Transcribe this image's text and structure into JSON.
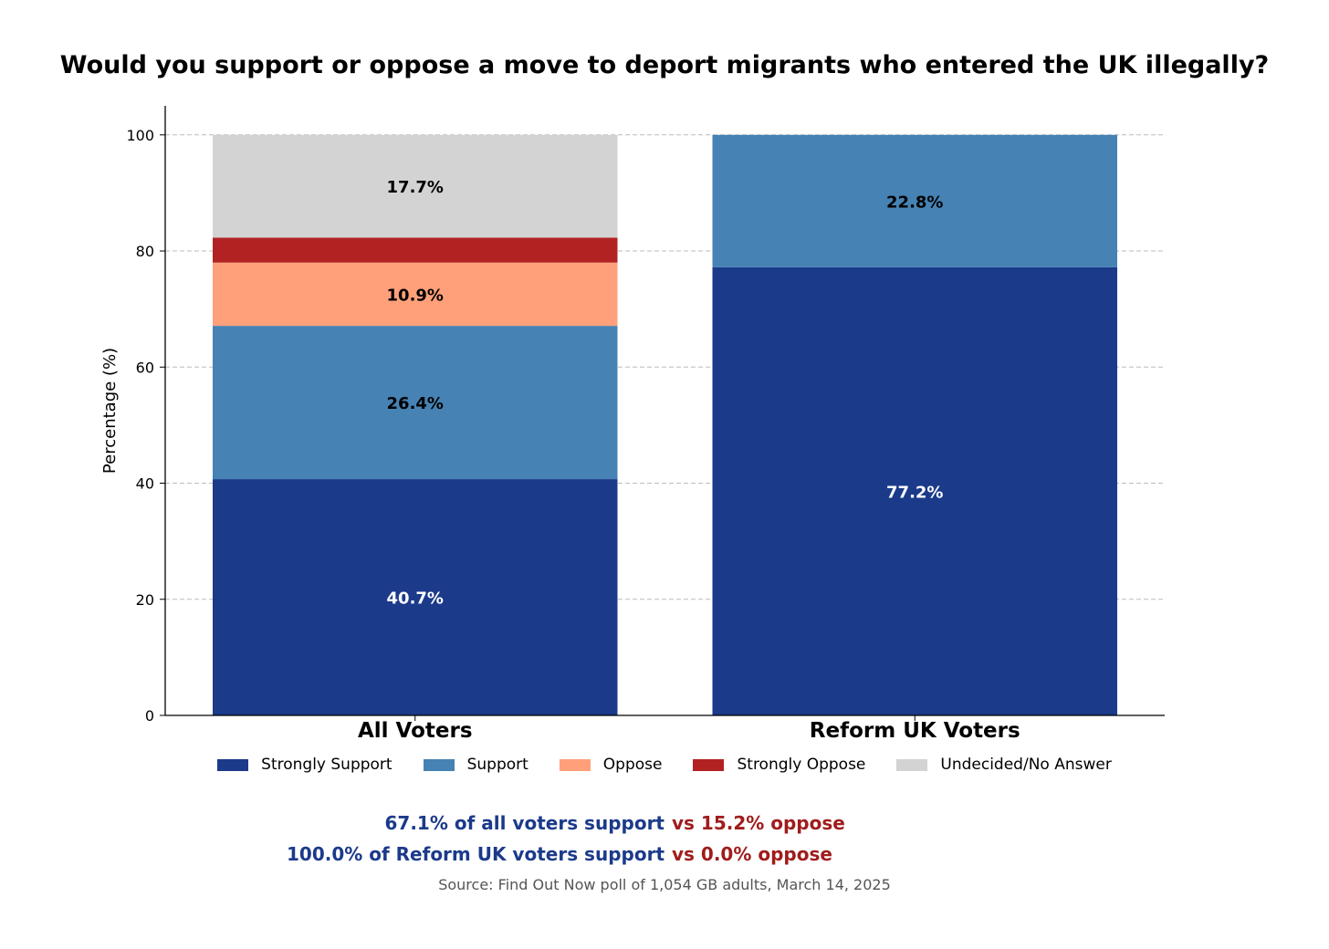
{
  "colors": {
    "strongly_support": "#1b3a8a",
    "support": "#4682b4",
    "oppose": "#ffa07a",
    "strongly_oppose": "#b22222",
    "undecided": "#d3d3d3",
    "summary_support": "#1b3a8a",
    "summary_oppose": "#a01c1c",
    "source": "#555555"
  },
  "chart_data": {
    "type": "bar",
    "stacked": true,
    "title": "Would you support or oppose a move to deport migrants who entered the UK illegally?",
    "xlabel": "",
    "ylabel": "Percentage (%)",
    "ylim": [
      0,
      105
    ],
    "yticks": [
      "0",
      "20",
      "40",
      "60",
      "80",
      "100"
    ],
    "grid": "y-dashed",
    "legend_position": "bottom",
    "categories": [
      "All Voters",
      "Reform UK Voters"
    ],
    "series": [
      {
        "name": "Strongly Support",
        "color_key": "strongly_support",
        "values": [
          40.7,
          77.2
        ],
        "labels": [
          "40.7%",
          "77.2%"
        ],
        "label_color": "#ffffff"
      },
      {
        "name": "Support",
        "color_key": "support",
        "values": [
          26.4,
          22.8
        ],
        "labels": [
          "26.4%",
          "22.8%"
        ],
        "label_color": "#000000"
      },
      {
        "name": "Oppose",
        "color_key": "oppose",
        "values": [
          10.9,
          0.0
        ],
        "labels": [
          "10.9%",
          ""
        ],
        "label_color": "#000000"
      },
      {
        "name": "Strongly Oppose",
        "color_key": "strongly_oppose",
        "values": [
          4.3,
          0.0
        ],
        "labels": [
          "",
          ""
        ],
        "label_color": "#000000"
      },
      {
        "name": "Undecided/No Answer",
        "color_key": "undecided",
        "values": [
          17.7,
          0.0
        ],
        "labels": [
          "17.7%",
          ""
        ],
        "label_color": "#000000"
      }
    ]
  },
  "summary": [
    {
      "support_text": "67.1% of all voters support",
      "oppose_text": "vs 15.2% oppose"
    },
    {
      "support_text": "100.0% of Reform UK voters support",
      "oppose_text": "vs 0.0% oppose"
    }
  ],
  "source": "Source: Find Out Now poll of 1,054 GB adults, March 14, 2025"
}
